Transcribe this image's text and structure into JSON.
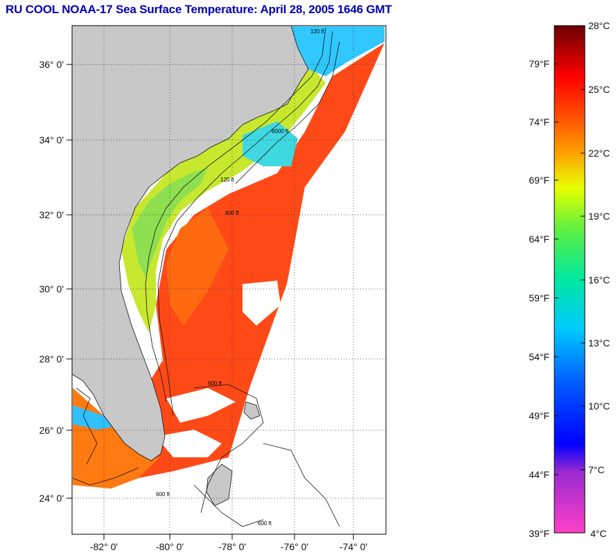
{
  "title": "RU COOL  NOAA-17  Sea Surface Temperature:  April 28, 2005 1646 GMT",
  "map": {
    "lat_labels": [
      "36° 0'",
      "34° 0'",
      "32° 0'",
      "30° 0'",
      "28° 0'",
      "26° 0'",
      "24° 0'"
    ],
    "lon_labels": [
      "-82° 0'",
      "-80° 0'",
      "-78° 0'",
      "-76° 0'",
      "-74° 0'"
    ],
    "contour_labels": [
      "120 ft",
      "600 ft",
      "6000 ft"
    ]
  },
  "colorbar": {
    "celsius_labels": [
      "28°C",
      "25°C",
      "22°C",
      "19°C",
      "16°C",
      "13°C",
      "10°C",
      "7°C",
      "4°C"
    ],
    "fahrenheit_labels": [
      "79°F",
      "74°F",
      "69°F",
      "64°F",
      "59°F",
      "54°F",
      "49°F",
      "44°F",
      "39°F"
    ]
  },
  "colors": {
    "title": "#0000b4",
    "land": "#c8c8c8",
    "no_data": "#ffffff",
    "warm_water": "#ff3a10",
    "cold_water": "#2fc8ff"
  }
}
